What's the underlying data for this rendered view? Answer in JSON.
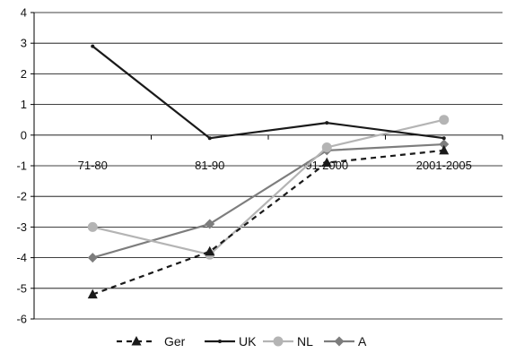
{
  "chart_data": {
    "type": "line",
    "categories": [
      "71-80",
      "81-90",
      "91-2000",
      "2001-2005"
    ],
    "ylim": [
      -6,
      4
    ],
    "yticks": [
      4,
      3,
      2,
      1,
      0,
      -1,
      -2,
      -3,
      -4,
      -5,
      -6
    ],
    "grid": true,
    "legend_position": "bottom",
    "series": [
      {
        "name": "Ger",
        "values": [
          -5.2,
          -3.8,
          -0.9,
          -0.5
        ],
        "color": "#1a1a1a",
        "dash": "dashed",
        "marker": "triangle"
      },
      {
        "name": "UK",
        "values": [
          2.9,
          -0.1,
          0.4,
          -0.1
        ],
        "color": "#1a1a1a",
        "dash": "solid",
        "marker": "small-dot"
      },
      {
        "name": "NL",
        "values": [
          -3.0,
          -3.9,
          -0.4,
          0.5
        ],
        "color": "#b4b4b4",
        "dash": "solid",
        "marker": "circle"
      },
      {
        "name": "A",
        "values": [
          -4.0,
          -2.9,
          -0.5,
          -0.3
        ],
        "color": "#7d7d7d",
        "dash": "solid",
        "marker": "diamond"
      }
    ]
  }
}
